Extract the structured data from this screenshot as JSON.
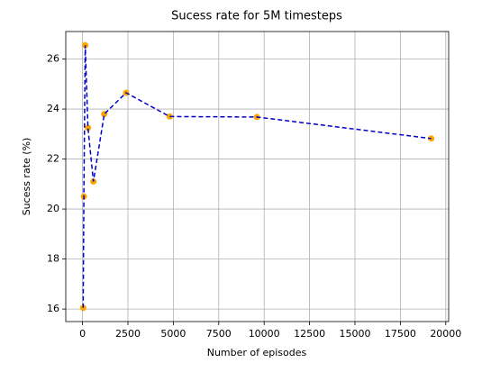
{
  "chart_data": {
    "type": "line",
    "title": "Sucess rate for 5M timesteps",
    "x_label": "Number of episodes",
    "y_label": "Sucess rate (%)",
    "x": [
      37.5,
      75,
      150,
      300,
      600,
      1200,
      2400,
      4800,
      9600,
      19200
    ],
    "series": [
      {
        "line_color": "#0000cc",
        "marker_color": "#ffa500",
        "values": [
          16.05,
          20.5,
          26.55,
          23.25,
          21.1,
          23.8,
          24.65,
          23.7,
          23.68,
          22.82
        ]
      }
    ],
    "xlim": [
      -921,
      20158
    ],
    "ylim": [
      15.5,
      27.1
    ],
    "xticks": [
      0,
      2500,
      5000,
      7500,
      10000,
      12500,
      15000,
      17500,
      20000
    ],
    "yticks": [
      16,
      18,
      20,
      22,
      24,
      26
    ],
    "grid": true
  }
}
